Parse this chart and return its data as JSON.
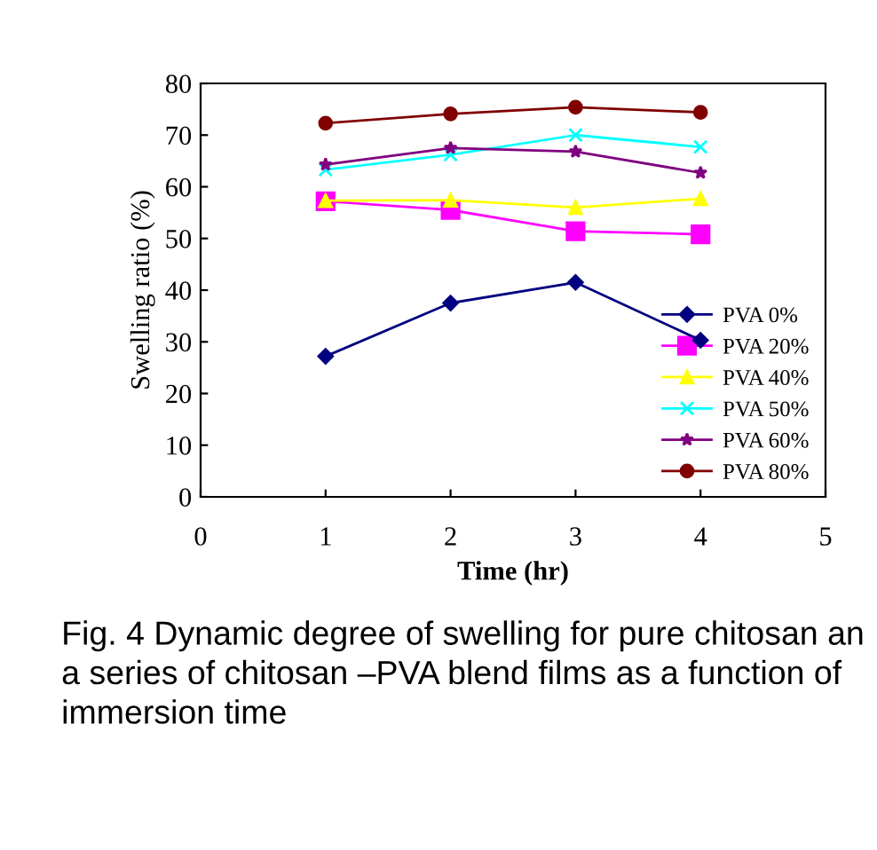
{
  "chart_data": {
    "type": "line",
    "xlabel": "Time (hr)",
    "ylabel": "Swelling ratio (%)",
    "x": [
      1,
      2,
      3,
      4
    ],
    "xlim": [
      0,
      5
    ],
    "xticks": [
      0,
      1,
      2,
      3,
      4,
      5
    ],
    "ylim": [
      0,
      80
    ],
    "yticks": [
      0,
      10,
      20,
      30,
      40,
      50,
      60,
      70,
      80
    ],
    "grid": false,
    "legend": "right",
    "series": [
      {
        "name": "PVA 0%",
        "color": "#000080",
        "marker": "diamond",
        "values": [
          27.2,
          37.5,
          41.5,
          30.3
        ]
      },
      {
        "name": "PVA 20%",
        "color": "#ff00ff",
        "marker": "square",
        "values": [
          57.2,
          55.5,
          51.4,
          50.8
        ]
      },
      {
        "name": "PVA 40%",
        "color": "#ffff00",
        "marker": "triangle",
        "values": [
          57.3,
          57.4,
          56.0,
          57.7
        ]
      },
      {
        "name": "PVA 50%",
        "color": "#00ffff",
        "marker": "cross",
        "values": [
          63.3,
          66.2,
          70.0,
          67.7
        ]
      },
      {
        "name": "PVA 60%",
        "color": "#800080",
        "marker": "star",
        "values": [
          64.3,
          67.5,
          66.8,
          62.7
        ]
      },
      {
        "name": "PVA 80%",
        "color": "#800000",
        "marker": "circle",
        "values": [
          72.3,
          74.1,
          75.4,
          74.4
        ]
      }
    ],
    "annotations": [
      "Fig. 4 Dynamic degree of swelling for pure chitosan an a series of chitosan –PVA blend films as a function of immersion time"
    ]
  }
}
